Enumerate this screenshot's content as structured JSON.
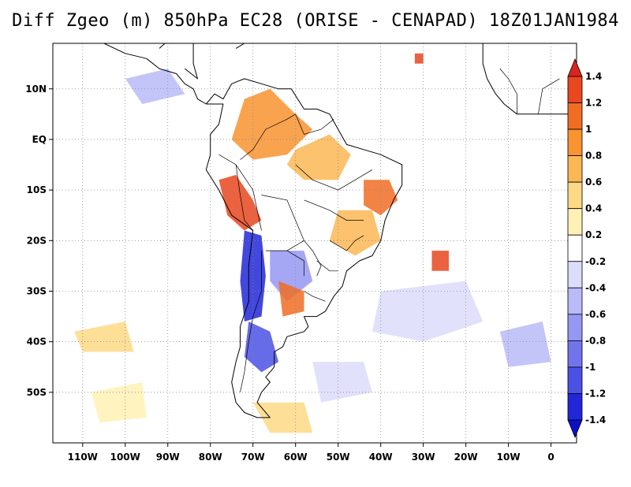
{
  "title": "Diff Zgeo (m) 850hPa EC28 (ORISE - CENAPAD) 18Z01JAN1984",
  "map": {
    "lon_range": [
      -117,
      6
    ],
    "lat_range": [
      -60,
      19
    ],
    "lon_ticks": [
      {
        "value": -110,
        "label": "110W"
      },
      {
        "value": -100,
        "label": "100W"
      },
      {
        "value": -90,
        "label": "90W"
      },
      {
        "value": -80,
        "label": "80W"
      },
      {
        "value": -70,
        "label": "70W"
      },
      {
        "value": -60,
        "label": "60W"
      },
      {
        "value": -50,
        "label": "50W"
      },
      {
        "value": -40,
        "label": "40W"
      },
      {
        "value": -30,
        "label": "30W"
      },
      {
        "value": -20,
        "label": "20W"
      },
      {
        "value": -10,
        "label": "10W"
      },
      {
        "value": 0,
        "label": "0"
      }
    ],
    "lat_ticks": [
      {
        "value": 10,
        "label": "10N"
      },
      {
        "value": 0,
        "label": "EQ"
      },
      {
        "value": -10,
        "label": "10S"
      },
      {
        "value": -20,
        "label": "20S"
      },
      {
        "value": -30,
        "label": "30S"
      },
      {
        "value": -40,
        "label": "40S"
      },
      {
        "value": -50,
        "label": "50S"
      }
    ],
    "gridlines": "dotted"
  },
  "colorbar": {
    "levels": [
      "1.4",
      "1.2",
      "1",
      "0.8",
      "0.6",
      "0.4",
      "0.2",
      "-0.2",
      "-0.4",
      "-0.6",
      "-0.8",
      "-1",
      "-1.2",
      "-1.4"
    ],
    "colors": [
      "#d7261e",
      "#e8471f",
      "#f06d23",
      "#f8932f",
      "#fbb754",
      "#fdd986",
      "#fff1b5",
      "#ffffff",
      "#dcdcfc",
      "#b9bbf8",
      "#9598f2",
      "#7175ec",
      "#4b51e4",
      "#2127d8",
      "#0a10c8"
    ]
  },
  "regions": [
    {
      "color": "#f8932f",
      "pts": [
        [
          -72,
          8
        ],
        [
          -66,
          10
        ],
        [
          -60,
          5
        ],
        [
          -56,
          2
        ],
        [
          -62,
          -3
        ],
        [
          -70,
          -4
        ],
        [
          -75,
          0
        ]
      ]
    },
    {
      "color": "#fbb754",
      "pts": [
        [
          -60,
          -2
        ],
        [
          -52,
          1
        ],
        [
          -47,
          -3
        ],
        [
          -50,
          -8
        ],
        [
          -58,
          -8
        ],
        [
          -62,
          -5
        ]
      ]
    },
    {
      "color": "#e8471f",
      "pts": [
        [
          -78,
          -8
        ],
        [
          -74,
          -7
        ],
        [
          -70,
          -12
        ],
        [
          -68,
          -16
        ],
        [
          -72,
          -18
        ],
        [
          -76,
          -15
        ]
      ]
    },
    {
      "color": "#f06d23",
      "pts": [
        [
          -44,
          -8
        ],
        [
          -38,
          -8
        ],
        [
          -36,
          -12
        ],
        [
          -40,
          -15
        ],
        [
          -44,
          -13
        ]
      ]
    },
    {
      "color": "#fbb754",
      "pts": [
        [
          -50,
          -14
        ],
        [
          -42,
          -14
        ],
        [
          -40,
          -20
        ],
        [
          -46,
          -23
        ],
        [
          -52,
          -20
        ]
      ]
    },
    {
      "color": "#2127d8",
      "pts": [
        [
          -72,
          -18
        ],
        [
          -68,
          -19
        ],
        [
          -67,
          -27
        ],
        [
          -68,
          -35
        ],
        [
          -72,
          -36
        ],
        [
          -73,
          -28
        ]
      ]
    },
    {
      "color": "#4b51e4",
      "pts": [
        [
          -71,
          -36
        ],
        [
          -66,
          -38
        ],
        [
          -64,
          -44
        ],
        [
          -68,
          -46
        ],
        [
          -72,
          -43
        ]
      ]
    },
    {
      "color": "#9598f2",
      "pts": [
        [
          -66,
          -22
        ],
        [
          -58,
          -22
        ],
        [
          -56,
          -28
        ],
        [
          -62,
          -32
        ],
        [
          -66,
          -28
        ]
      ]
    },
    {
      "color": "#f06d23",
      "pts": [
        [
          -64,
          -28
        ],
        [
          -58,
          -30
        ],
        [
          -58,
          -34
        ],
        [
          -63,
          -35
        ]
      ]
    },
    {
      "color": "#e8471f",
      "pts": [
        [
          -28,
          -22
        ],
        [
          -24,
          -22
        ],
        [
          -24,
          -26
        ],
        [
          -28,
          -26
        ]
      ]
    },
    {
      "color": "#fdd986",
      "pts": [
        [
          -112,
          -38
        ],
        [
          -100,
          -36
        ],
        [
          -98,
          -42
        ],
        [
          -110,
          -42
        ]
      ]
    },
    {
      "color": "#b9bbf8",
      "pts": [
        [
          -100,
          12
        ],
        [
          -90,
          14
        ],
        [
          -86,
          9
        ],
        [
          -96,
          7
        ]
      ]
    },
    {
      "color": "#dcdcfc",
      "pts": [
        [
          -40,
          -30
        ],
        [
          -20,
          -28
        ],
        [
          -16,
          -36
        ],
        [
          -30,
          -40
        ],
        [
          -42,
          -38
        ]
      ]
    },
    {
      "color": "#fdd986",
      "pts": [
        [
          -70,
          -52
        ],
        [
          -58,
          -52
        ],
        [
          -56,
          -58
        ],
        [
          -66,
          -58
        ]
      ]
    },
    {
      "color": "#fff1b5",
      "pts": [
        [
          -108,
          -50
        ],
        [
          -96,
          -48
        ],
        [
          -95,
          -55
        ],
        [
          -106,
          -56
        ]
      ]
    },
    {
      "color": "#b9bbf8",
      "pts": [
        [
          -12,
          -38
        ],
        [
          -2,
          -36
        ],
        [
          0,
          -44
        ],
        [
          -10,
          -45
        ]
      ]
    },
    {
      "color": "#e8471f",
      "pts": [
        [
          -32,
          17
        ],
        [
          -30,
          17
        ],
        [
          -30,
          15
        ],
        [
          -32,
          15
        ]
      ]
    },
    {
      "color": "#dcdcfc",
      "pts": [
        [
          -56,
          -44
        ],
        [
          -44,
          -44
        ],
        [
          -42,
          -50
        ],
        [
          -54,
          -52
        ]
      ]
    }
  ],
  "coast": [
    [
      [
        -81,
        7
      ],
      [
        -79,
        9
      ],
      [
        -77,
        8
      ],
      [
        -75,
        11
      ],
      [
        -72,
        12
      ],
      [
        -68,
        11
      ],
      [
        -64,
        10
      ],
      [
        -61,
        10
      ],
      [
        -58,
        6
      ],
      [
        -55,
        6
      ],
      [
        -52,
        5
      ],
      [
        -50,
        2
      ],
      [
        -48,
        -1
      ],
      [
        -44,
        -2
      ],
      [
        -40,
        -3
      ],
      [
        -35,
        -5
      ],
      [
        -35,
        -9
      ],
      [
        -37,
        -12
      ],
      [
        -39,
        -16
      ],
      [
        -40,
        -20
      ],
      [
        -42,
        -23
      ],
      [
        -45,
        -24
      ],
      [
        -48,
        -26
      ],
      [
        -49,
        -29
      ],
      [
        -51,
        -31
      ],
      [
        -53,
        -34
      ],
      [
        -55,
        -35
      ],
      [
        -58,
        -35
      ],
      [
        -57,
        -37
      ],
      [
        -58,
        -38
      ],
      [
        -62,
        -39
      ],
      [
        -63,
        -41
      ],
      [
        -65,
        -42
      ],
      [
        -65,
        -45
      ],
      [
        -67,
        -47
      ],
      [
        -66,
        -48
      ],
      [
        -68,
        -50
      ],
      [
        -69,
        -52
      ],
      [
        -68,
        -53
      ],
      [
        -66,
        -55
      ],
      [
        -69,
        -55
      ],
      [
        -72,
        -54
      ],
      [
        -74,
        -52
      ],
      [
        -75,
        -48
      ],
      [
        -74,
        -44
      ],
      [
        -73,
        -41
      ],
      [
        -73,
        -37
      ],
      [
        -71,
        -32
      ],
      [
        -71,
        -25
      ],
      [
        -70,
        -18
      ],
      [
        -75,
        -15
      ],
      [
        -78,
        -10
      ],
      [
        -81,
        -6
      ],
      [
        -80,
        -3
      ],
      [
        -80,
        1
      ],
      [
        -78,
        3
      ],
      [
        -77,
        7
      ],
      [
        -81,
        7
      ]
    ],
    [
      [
        -105,
        19
      ],
      [
        -100,
        17
      ],
      [
        -95,
        16
      ],
      [
        -92,
        14
      ],
      [
        -88,
        13
      ],
      [
        -86,
        11
      ],
      [
        -84,
        10
      ],
      [
        -83,
        8
      ],
      [
        -81,
        7
      ]
    ],
    [
      [
        -5,
        19
      ],
      [
        -16,
        19
      ],
      [
        -16,
        15
      ],
      [
        -15,
        12
      ],
      [
        -13,
        9
      ],
      [
        -11,
        7
      ],
      [
        -8,
        5
      ],
      [
        -4,
        5
      ],
      [
        0,
        5
      ],
      [
        5,
        5
      ],
      [
        6,
        5
      ]
    ],
    [
      [
        -92,
        18
      ],
      [
        -88,
        21
      ],
      [
        -84,
        19
      ],
      [
        -84,
        15
      ],
      [
        -83,
        12
      ],
      [
        -86,
        14
      ]
    ],
    [
      [
        -74,
        18
      ],
      [
        -72,
        19
      ],
      [
        -68,
        19
      ]
    ]
  ],
  "borders": [
    [
      [
        -73,
        -4
      ],
      [
        -70,
        -2
      ],
      [
        -67,
        2
      ],
      [
        -62,
        4
      ],
      [
        -60,
        5
      ]
    ],
    [
      [
        -60,
        5
      ],
      [
        -58,
        1
      ],
      [
        -54,
        2
      ],
      [
        -51,
        4
      ]
    ],
    [
      [
        -78,
        -3
      ],
      [
        -74,
        -5
      ],
      [
        -70,
        -10
      ],
      [
        -69,
        -14
      ],
      [
        -68,
        -18
      ]
    ],
    [
      [
        -74,
        -5
      ],
      [
        -73,
        -11
      ],
      [
        -72,
        -16
      ],
      [
        -70,
        -18
      ]
    ],
    [
      [
        -68,
        -11
      ],
      [
        -62,
        -12
      ],
      [
        -60,
        -16
      ],
      [
        -58,
        -20
      ],
      [
        -62,
        -22
      ],
      [
        -67,
        -22
      ]
    ],
    [
      [
        -58,
        -20
      ],
      [
        -56,
        -22
      ],
      [
        -54,
        -25
      ],
      [
        -55,
        -27
      ]
    ],
    [
      [
        -62,
        -22
      ],
      [
        -58,
        -24
      ],
      [
        -58,
        -27
      ]
    ],
    [
      [
        -68,
        -22
      ],
      [
        -68,
        -30
      ],
      [
        -70,
        -35
      ],
      [
        -71,
        -40
      ],
      [
        -72,
        -46
      ],
      [
        -73,
        -50
      ]
    ],
    [
      [
        -58,
        -30
      ],
      [
        -56,
        -31
      ],
      [
        -53,
        -32
      ]
    ],
    [
      [
        -60,
        -5
      ],
      [
        -56,
        -8
      ],
      [
        -50,
        -10
      ],
      [
        -46,
        -8
      ],
      [
        -42,
        -6
      ]
    ],
    [
      [
        -58,
        -12
      ],
      [
        -52,
        -14
      ],
      [
        -48,
        -16
      ],
      [
        -44,
        -16
      ]
    ],
    [
      [
        -52,
        -20
      ],
      [
        -48,
        -22
      ],
      [
        -46,
        -20
      ],
      [
        -44,
        -19
      ]
    ],
    [
      [
        -55,
        -24
      ],
      [
        -52,
        -26
      ],
      [
        -50,
        -26
      ]
    ],
    [
      [
        -8,
        5
      ],
      [
        -8,
        9
      ],
      [
        -10,
        12
      ],
      [
        -12,
        14
      ]
    ],
    [
      [
        -3,
        5
      ],
      [
        -2,
        10
      ],
      [
        0,
        11
      ],
      [
        2,
        12
      ]
    ]
  ]
}
